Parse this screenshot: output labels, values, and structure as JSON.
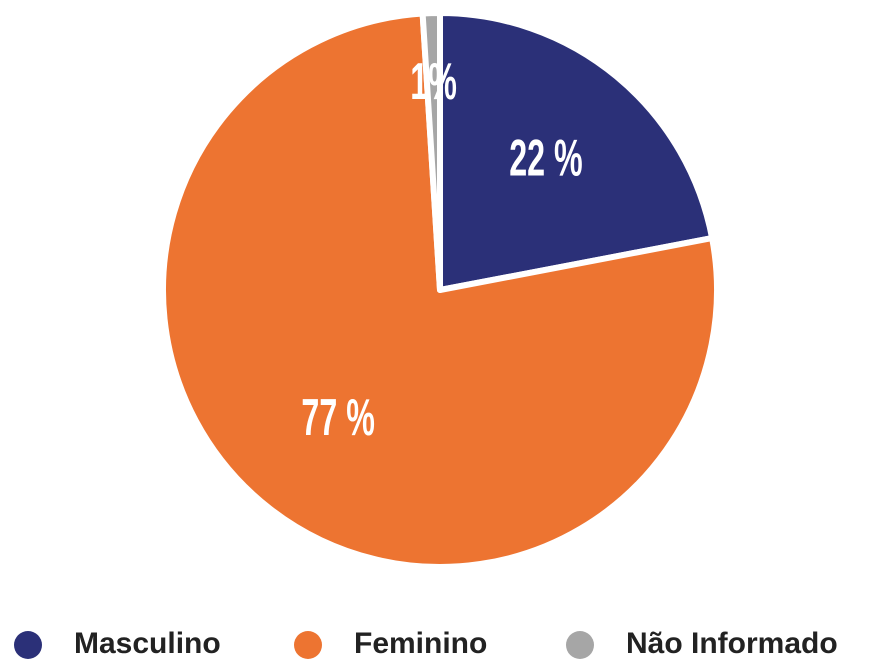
{
  "chart_data": {
    "type": "pie",
    "categories": [
      "Masculino",
      "Feminino",
      "Não Informado"
    ],
    "values": [
      22,
      77,
      1
    ],
    "value_labels": [
      "22 %",
      "77 %",
      "1%"
    ],
    "colors": [
      "#2b3078",
      "#ed7431",
      "#a6a6a6"
    ]
  }
}
